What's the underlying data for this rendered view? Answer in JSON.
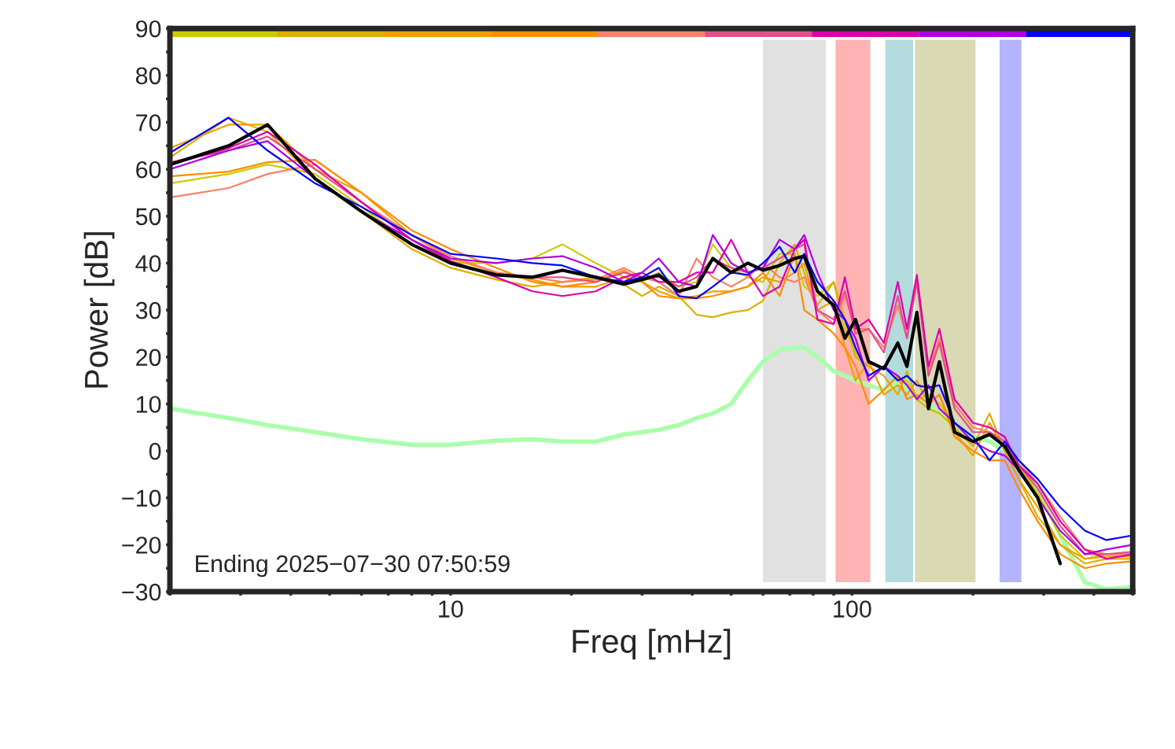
{
  "chart_data": {
    "type": "line",
    "xlabel": "Freq [mHz]",
    "ylabel": "Power [dB]",
    "log": "x",
    "grid": false,
    "marker": "none",
    "line_style": "solid",
    "xlim": [
      2,
      500
    ],
    "ylim": [
      -30,
      90
    ],
    "xticks": [
      {
        "value": 2,
        "label": null
      },
      {
        "value": 3,
        "label": null
      },
      {
        "value": 4,
        "label": null
      },
      {
        "value": 5,
        "label": null
      },
      {
        "value": 6,
        "label": null
      },
      {
        "value": 7,
        "label": null
      },
      {
        "value": 8,
        "label": null
      },
      {
        "value": 9,
        "label": null
      },
      10,
      {
        "value": 20,
        "label": null
      },
      {
        "value": 30,
        "label": null
      },
      {
        "value": 40,
        "label": null
      },
      {
        "value": 50,
        "label": null
      },
      {
        "value": 60,
        "label": null
      },
      {
        "value": 70,
        "label": null
      },
      {
        "value": 80,
        "label": null
      },
      {
        "value": 90,
        "label": null
      },
      100,
      {
        "value": 200,
        "label": null
      },
      {
        "value": 300,
        "label": null
      },
      {
        "value": 400,
        "label": null
      },
      {
        "value": 500,
        "label": null
      }
    ],
    "yticks": [
      {
        "value": -30,
        "label": "−30"
      },
      {
        "value": -25,
        "label": null
      },
      {
        "value": -20,
        "label": "−20"
      },
      {
        "value": -15,
        "label": null
      },
      {
        "value": -10,
        "label": "−10"
      },
      {
        "value": -5,
        "label": null
      },
      0,
      {
        "value": 5,
        "label": null
      },
      10,
      {
        "value": 15,
        "label": null
      },
      20,
      {
        "value": 25,
        "label": null
      },
      30,
      {
        "value": 35,
        "label": null
      },
      40,
      {
        "value": 45,
        "label": null
      },
      50,
      {
        "value": 55,
        "label": null
      },
      60,
      {
        "value": 65,
        "label": null
      },
      70,
      {
        "value": 75,
        "label": null
      },
      80,
      {
        "value": 85,
        "label": null
      },
      90
    ],
    "x": [
      2,
      2.8,
      3.5,
      4.6,
      6,
      8,
      10,
      13,
      16,
      19,
      23,
      27,
      30,
      33,
      37,
      41,
      45,
      50,
      55,
      60,
      66,
      72,
      76,
      82,
      90,
      96,
      102,
      110,
      120,
      130,
      137,
      145,
      155,
      165,
      180,
      200,
      220,
      240,
      260,
      290,
      330,
      380,
      430,
      500
    ],
    "bands": [
      {
        "axis": "x",
        "from": 60,
        "to": 86,
        "color": "#e1e1e1"
      },
      {
        "axis": "x",
        "from": 91,
        "to": 111,
        "color": "#ffb3b3"
      },
      {
        "axis": "x",
        "from": 121,
        "to": 142,
        "color": "#b3dbdd"
      },
      {
        "axis": "x",
        "from": 143.5,
        "to": 203,
        "color": "#d9d9b4"
      },
      {
        "axis": "x",
        "from": 233,
        "to": 264,
        "color": "#b3b3ff"
      }
    ],
    "series": [
      {
        "color": "#cccc00",
        "values": [
          57,
          59,
          61,
          59,
          52,
          44,
          40,
          40,
          41,
          44,
          40,
          37,
          36,
          38,
          35,
          36,
          44,
          39,
          37,
          36,
          42,
          42,
          35,
          33,
          36,
          26,
          21,
          16,
          18,
          15,
          15,
          11,
          12,
          10,
          6,
          2,
          4,
          1,
          -3,
          -9,
          -18,
          -23,
          -22,
          -22
        ]
      },
      {
        "color": "#ddb000",
        "values": [
          62.5,
          71,
          68,
          58,
          51,
          43,
          39,
          36.5,
          35,
          36,
          37,
          35.5,
          33,
          35,
          33,
          29,
          28.5,
          29.5,
          30,
          32,
          40,
          44,
          38,
          31,
          36,
          28,
          20,
          18,
          16,
          12,
          17,
          11,
          9,
          8,
          5,
          1,
          8,
          0,
          -6,
          -14,
          -20,
          -24,
          -23,
          -23
        ]
      },
      {
        "color": "#f0a000",
        "values": [
          64.5,
          69.5,
          69.5,
          60,
          55,
          46,
          41,
          38,
          36.5,
          35,
          35,
          37,
          36,
          34,
          32.5,
          33,
          34,
          34,
          35,
          37,
          36,
          38,
          40,
          30,
          32,
          22,
          15,
          19,
          12,
          14,
          12,
          15,
          10,
          12,
          4,
          -1,
          6,
          0,
          -6,
          -12,
          -20,
          -23,
          -22.5,
          -22.5
        ]
      },
      {
        "color": "#ff8c00",
        "values": [
          58.5,
          59.5,
          61.5,
          62,
          55,
          47,
          43,
          39,
          36,
          35,
          36,
          38.5,
          36,
          33,
          32.5,
          32.5,
          33,
          34,
          35,
          38,
          33,
          42,
          30,
          28,
          25,
          22,
          18,
          10,
          13,
          16,
          11,
          12,
          10,
          12,
          3,
          0,
          -2,
          -2,
          -8,
          -15,
          -22,
          -25,
          -24,
          -23.5
        ]
      },
      {
        "color": "#ff7f6a",
        "values": [
          54,
          56,
          59,
          61,
          53,
          46,
          41.5,
          38,
          37,
          36,
          36.5,
          39,
          37,
          36,
          33,
          41,
          37,
          35,
          37,
          40,
          37,
          36,
          37,
          30,
          27,
          33,
          26,
          26,
          22,
          31,
          24,
          36,
          17,
          24,
          10,
          5,
          4,
          2,
          -2,
          -7,
          -14,
          -21,
          -22,
          -22
        ]
      },
      {
        "color": "#e0508a",
        "values": [
          61.5,
          64,
          67,
          60,
          53,
          45,
          40,
          37.5,
          37,
          37,
          36,
          38,
          37,
          37,
          35,
          37,
          41,
          39,
          38,
          39,
          41,
          43,
          44,
          30,
          28,
          34,
          25,
          26,
          21,
          33,
          24,
          36,
          16,
          23,
          9,
          4,
          4,
          2,
          -3,
          -8,
          -16,
          -22,
          -22,
          -21.5
        ]
      },
      {
        "color": "#dd00aa",
        "values": [
          61,
          64.5,
          68,
          61,
          53,
          45,
          40.5,
          37,
          34,
          33,
          34,
          37,
          38,
          36,
          36,
          38,
          38,
          45,
          38,
          33,
          35,
          43,
          45,
          28,
          27,
          37,
          26,
          28,
          23,
          36,
          26,
          37.5,
          18,
          26,
          11,
          6,
          5,
          3,
          -3,
          -7,
          -15,
          -21,
          -23,
          -22
        ]
      },
      {
        "color": "#b000e0",
        "values": [
          60,
          64,
          66,
          58,
          51,
          45,
          41,
          40,
          41,
          41.5,
          39,
          36,
          38,
          41,
          36,
          35,
          46,
          40,
          38,
          39,
          45,
          43,
          46,
          38,
          30,
          28,
          24,
          15,
          18,
          16,
          14,
          11,
          14,
          9,
          6,
          2,
          0,
          -1,
          -4,
          -10,
          -17,
          -22,
          -21,
          -20
        ]
      },
      {
        "color": "#0000ff",
        "values": [
          63.5,
          71,
          64,
          57,
          52,
          46,
          42,
          41,
          40,
          39.5,
          37,
          36,
          37,
          39,
          33,
          32.5,
          35,
          38,
          37.5,
          40,
          43.5,
          38,
          42,
          36,
          32,
          28,
          22,
          16,
          18,
          15,
          16,
          14,
          13.5,
          14,
          6,
          3,
          -2,
          2,
          -2,
          -6,
          -12,
          -17,
          -19,
          -18
        ]
      },
      {
        "color": "#aaffaa",
        "values": [
          9,
          7,
          5.5,
          4,
          2.5,
          1.3,
          1.3,
          2.2,
          2.5,
          2,
          2,
          3.5,
          4,
          4.5,
          5.5,
          7,
          8,
          10,
          15,
          19,
          21.5,
          22,
          22,
          20,
          17,
          16,
          15,
          14,
          13,
          14.5,
          13,
          12,
          10,
          8,
          5,
          3,
          2,
          0,
          -2,
          -8,
          -18,
          -28,
          -29.5,
          -29
        ]
      },
      {
        "color": "#000000",
        "values": [
          61,
          65,
          69.5,
          58,
          51,
          44,
          40,
          37.5,
          37,
          38.5,
          37,
          35.5,
          36.5,
          37.5,
          34,
          35,
          41,
          38,
          40,
          38.5,
          39.5,
          41,
          41.5,
          34,
          31,
          24,
          28,
          19,
          17.5,
          23,
          18,
          29.5,
          9,
          19,
          4,
          2,
          3.5,
          1,
          -4,
          -10,
          -24,
          null,
          null,
          null
        ]
      }
    ],
    "annotations": [
      "Ending 2025−07−30 07:50:59"
    ]
  }
}
